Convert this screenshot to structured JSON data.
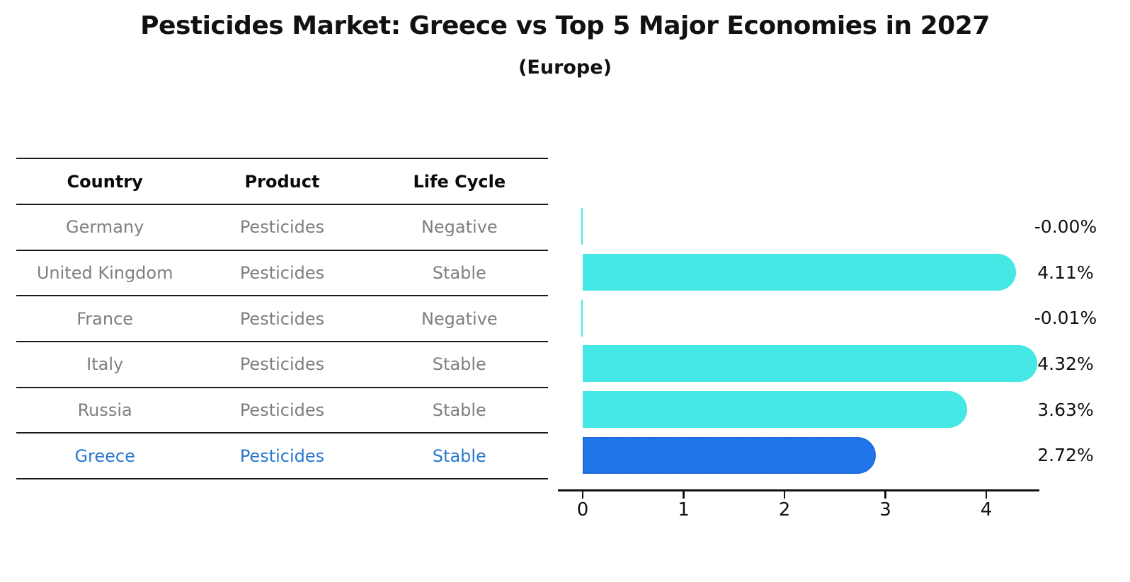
{
  "title": "Pesticides Market: Greece vs Top 5 Major Economies in 2027",
  "subtitle": "(Europe)",
  "table": {
    "headers": [
      "Country",
      "Product",
      "Life Cycle"
    ],
    "rows": [
      {
        "country": "Germany",
        "product": "Pesticides",
        "life_cycle": "Negative",
        "highlighted": false
      },
      {
        "country": "United Kingdom",
        "product": "Pesticides",
        "life_cycle": "Stable",
        "highlighted": false
      },
      {
        "country": "France",
        "product": "Pesticides",
        "life_cycle": "Negative",
        "highlighted": false
      },
      {
        "country": "Italy",
        "product": "Pesticides",
        "life_cycle": "Stable",
        "highlighted": false
      },
      {
        "country": "Russia",
        "product": "Pesticides",
        "life_cycle": "Stable",
        "highlighted": false
      },
      {
        "country": "Greece",
        "product": "Pesticides",
        "life_cycle": "Stable",
        "highlighted": true
      }
    ]
  },
  "chart_data": {
    "type": "bar",
    "orientation": "horizontal",
    "title": "Pesticides Market: Greece vs Top 5 Major Economies in 2027",
    "subtitle": "(Europe)",
    "categories": [
      "Germany",
      "United Kingdom",
      "France",
      "Italy",
      "Russia",
      "Greece"
    ],
    "values": [
      -0.0,
      4.11,
      -0.01,
      4.32,
      3.63,
      2.72
    ],
    "value_labels": [
      "-0.00%",
      "4.11%",
      "-0.01%",
      "4.32%",
      "3.63%",
      "2.72%"
    ],
    "x_ticks": [
      "0",
      "1",
      "2",
      "3",
      "4"
    ],
    "xlim": [
      -0.25,
      4.6
    ],
    "unit": "percent",
    "grid": false,
    "legend": "none",
    "bar_color": "#46e8e6",
    "highlight_color": "#2076e8",
    "highlight_border_color": "#1a5fd6",
    "highlight_index": 5
  },
  "colors": {
    "background": "#ffffff",
    "table_line": "#1a1a1a",
    "table_text": "#7f7f7f",
    "table_header_text": "#0a0a0a",
    "highlight_row_text": "#2878cc",
    "axis": "#111111",
    "label_text": "#111111"
  }
}
